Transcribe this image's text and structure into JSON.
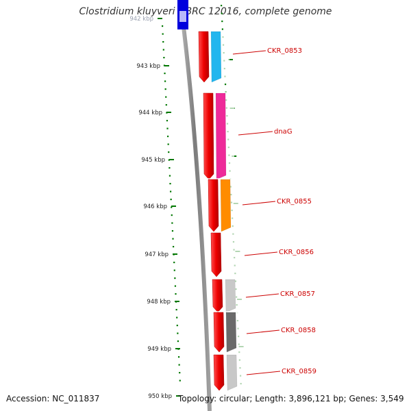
{
  "header": {
    "title": "Clostridium kluyveri NBRC 12016, complete genome"
  },
  "footer": {
    "accession": "Accession: NC_011837",
    "summary": "Topology: circular; Length: 3,896,121 bp; Genes: 3,549"
  },
  "scale": {
    "unit": "kbp",
    "ticks": [
      {
        "label": "942 kbp",
        "faint": true
      },
      {
        "label": "943 kbp"
      },
      {
        "label": "944 kbp"
      },
      {
        "label": "945 kbp"
      },
      {
        "label": "946 kbp"
      },
      {
        "label": "947 kbp"
      },
      {
        "label": "948 kbp"
      },
      {
        "label": "949 kbp"
      },
      {
        "label": "950 kbp"
      }
    ]
  },
  "colors": {
    "backbone": "#8a8a8a",
    "strand_arrow": "#ee0000",
    "tick": "#007700",
    "label_red": "#cc0000",
    "previous_gene": "#0000dd"
  },
  "genes": [
    {
      "name": "CKR_0853",
      "category_color": "#22b6ee"
    },
    {
      "name": "dnaG",
      "category_color": "#ee2a99"
    },
    {
      "name": "CKR_0855",
      "category_color": "#ff8c00"
    },
    {
      "name": "CKR_0856",
      "category_color": null
    },
    {
      "name": "CKR_0857",
      "category_color": "#c8c8c8"
    },
    {
      "name": "CKR_0858",
      "category_color": "#6a6a6a"
    },
    {
      "name": "CKR_0859",
      "category_color": "#c8c8c8"
    }
  ]
}
